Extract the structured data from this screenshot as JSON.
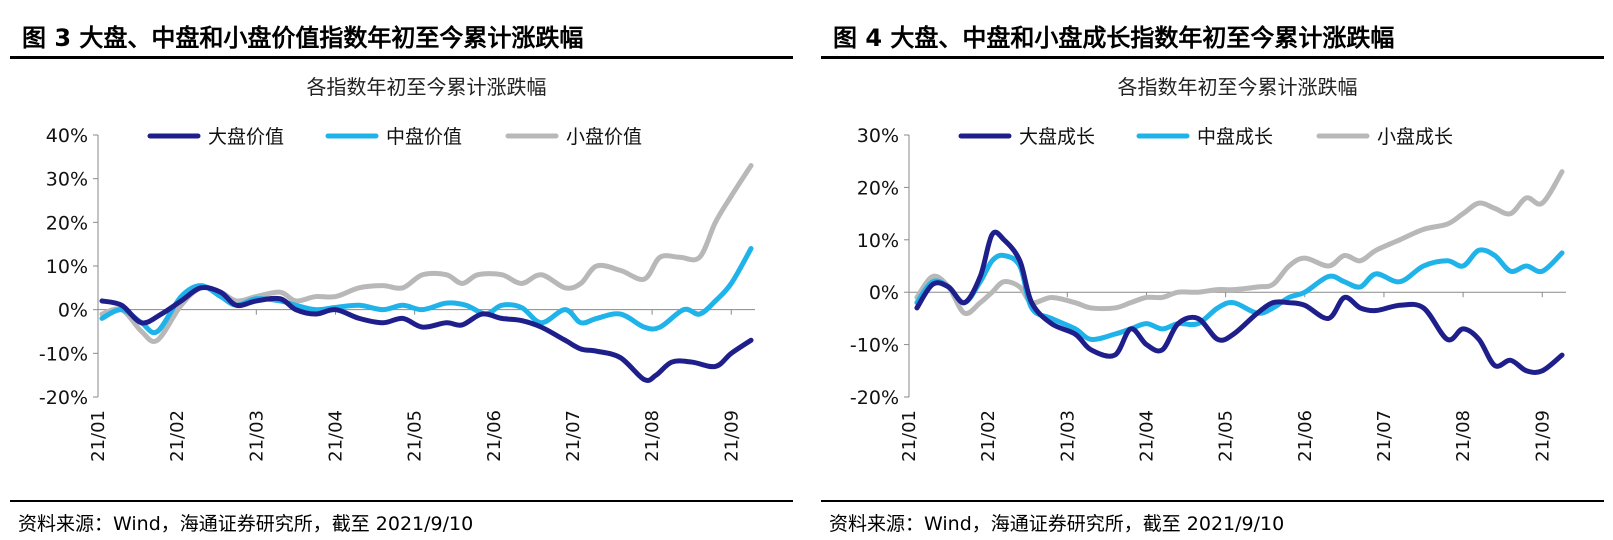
{
  "panels": [
    {
      "fig_title": "图 3  大盘、中盘和小盘价值指数年初至今累计涨跌幅",
      "source": "资料来源：Wind，海通证券研究所，截至 2021/9/10",
      "chart_data": {
        "type": "line",
        "title": "各指数年初至今累计涨跌幅",
        "x_ticks": [
          "21/01",
          "21/02",
          "21/03",
          "21/04",
          "21/05",
          "21/06",
          "21/07",
          "21/08",
          "21/09"
        ],
        "x_range": [
          0,
          8.3
        ],
        "ylim": [
          -20,
          40
        ],
        "y_ticks": [
          -20,
          -10,
          0,
          10,
          20,
          30,
          40
        ],
        "y_tick_labels": [
          "-20%",
          "-10%",
          "0%",
          "10%",
          "20%",
          "30%",
          "40%"
        ],
        "legend_position": "top",
        "grid": false,
        "series": [
          {
            "name": "大盘价值",
            "color": "#1f1f8c",
            "x": [
              0.05,
              0.3,
              0.55,
              0.8,
              1.05,
              1.3,
              1.55,
              1.75,
              2.0,
              2.3,
              2.5,
              2.75,
              3.0,
              3.3,
              3.6,
              3.85,
              4.1,
              4.4,
              4.6,
              4.85,
              5.1,
              5.35,
              5.6,
              5.9,
              6.1,
              6.3,
              6.6,
              6.9,
              7.05,
              7.25,
              7.5,
              7.8,
              8.0,
              8.25
            ],
            "y": [
              2,
              1,
              -3,
              -1,
              2,
              5,
              4,
              1,
              2,
              2.5,
              0,
              -1,
              0,
              -2,
              -3,
              -2,
              -4,
              -3,
              -3.5,
              -1,
              -2,
              -2.5,
              -4,
              -7,
              -9,
              -9.5,
              -11,
              -16,
              -15,
              -12,
              -12,
              -13,
              -10,
              -7
            ]
          },
          {
            "name": "中盘价值",
            "color": "#1fb3ea",
            "x": [
              0.05,
              0.3,
              0.55,
              0.75,
              1.05,
              1.3,
              1.55,
              1.75,
              2.0,
              2.3,
              2.5,
              2.75,
              3.0,
              3.3,
              3.6,
              3.85,
              4.1,
              4.4,
              4.65,
              4.9,
              5.1,
              5.35,
              5.6,
              5.9,
              6.1,
              6.3,
              6.6,
              6.9,
              7.1,
              7.4,
              7.6,
              7.8,
              8.0,
              8.25
            ],
            "y": [
              -2,
              0,
              -3,
              -5,
              3,
              5.5,
              3,
              1,
              2.5,
              2,
              1,
              0,
              0.5,
              1,
              0,
              1,
              0,
              1.5,
              1,
              -1,
              1,
              0.5,
              -3,
              0,
              -3,
              -2,
              -1,
              -4,
              -4,
              0,
              -1,
              2,
              6,
              14
            ]
          },
          {
            "name": "小盘价值",
            "color": "#b8b8b8",
            "x": [
              0.05,
              0.3,
              0.55,
              0.75,
              1.05,
              1.3,
              1.55,
              1.75,
              2.0,
              2.3,
              2.5,
              2.75,
              3.0,
              3.3,
              3.6,
              3.85,
              4.1,
              4.4,
              4.6,
              4.8,
              5.1,
              5.35,
              5.6,
              5.9,
              6.1,
              6.3,
              6.6,
              6.9,
              7.1,
              7.35,
              7.6,
              7.8,
              8.0,
              8.25
            ],
            "y": [
              -1,
              0,
              -5,
              -7,
              1,
              5,
              4,
              2,
              3,
              4,
              2,
              3,
              3,
              5,
              5.5,
              5,
              8,
              8,
              6,
              8,
              8,
              6,
              8,
              5,
              6,
              10,
              9,
              7,
              12,
              12,
              12,
              20,
              26,
              33
            ]
          }
        ]
      }
    },
    {
      "fig_title": "图 4  大盘、中盘和小盘成长指数年初至今累计涨跌幅",
      "source": "资料来源：Wind，海通证券研究所，截至 2021/9/10",
      "chart_data": {
        "type": "line",
        "title": "各指数年初至今累计涨跌幅",
        "x_ticks": [
          "21/01",
          "21/02",
          "21/03",
          "21/04",
          "21/05",
          "21/06",
          "21/07",
          "21/08",
          "21/09"
        ],
        "x_range": [
          0,
          8.3
        ],
        "ylim": [
          -20,
          30
        ],
        "y_ticks": [
          -20,
          -10,
          0,
          10,
          20,
          30
        ],
        "y_tick_labels": [
          "-20%",
          "-10%",
          "0%",
          "10%",
          "20%",
          "30%"
        ],
        "legend_position": "top",
        "grid": false,
        "series": [
          {
            "name": "大盘成长",
            "color": "#1f1f8c",
            "x": [
              0.1,
              0.3,
              0.5,
              0.7,
              0.9,
              1.05,
              1.2,
              1.4,
              1.55,
              1.8,
              2.1,
              2.3,
              2.6,
              2.8,
              3.0,
              3.2,
              3.4,
              3.65,
              3.9,
              4.1,
              4.4,
              4.6,
              4.8,
              5.0,
              5.3,
              5.5,
              5.7,
              5.9,
              6.2,
              6.5,
              6.8,
              7.0,
              7.2,
              7.4,
              7.6,
              7.8,
              8.0,
              8.25
            ],
            "y": [
              -3,
              1.5,
              1,
              -2,
              3,
              11,
              10,
              6,
              -2,
              -6,
              -8,
              -11,
              -12,
              -7,
              -10,
              -11,
              -6,
              -5,
              -9,
              -8,
              -4,
              -2,
              -2,
              -2.5,
              -5,
              -1,
              -3,
              -3.5,
              -2.5,
              -3,
              -9,
              -7,
              -9,
              -14,
              -13,
              -15,
              -15,
              -12
            ]
          },
          {
            "name": "中盘成长",
            "color": "#1fb3ea",
            "x": [
              0.1,
              0.3,
              0.5,
              0.7,
              0.9,
              1.05,
              1.2,
              1.4,
              1.55,
              1.8,
              2.1,
              2.3,
              2.6,
              2.8,
              3.0,
              3.2,
              3.4,
              3.65,
              3.9,
              4.1,
              4.4,
              4.6,
              4.8,
              5.0,
              5.3,
              5.5,
              5.7,
              5.9,
              6.2,
              6.5,
              6.8,
              7.0,
              7.2,
              7.4,
              7.6,
              7.8,
              8.0,
              8.25
            ],
            "y": [
              -2,
              2,
              1,
              -2,
              2,
              6,
              7,
              5,
              -3,
              -5,
              -7,
              -9,
              -8,
              -7,
              -6,
              -7,
              -6,
              -6,
              -3,
              -2,
              -4,
              -3,
              -1,
              0,
              3,
              2,
              1,
              3.5,
              2,
              5,
              6,
              5,
              8,
              7,
              4,
              5,
              4,
              7.5
            ]
          },
          {
            "name": "小盘成长",
            "color": "#b8b8b8",
            "x": [
              0.1,
              0.3,
              0.5,
              0.7,
              0.9,
              1.05,
              1.2,
              1.4,
              1.55,
              1.8,
              2.1,
              2.3,
              2.6,
              2.8,
              3.0,
              3.2,
              3.4,
              3.65,
              3.9,
              4.1,
              4.4,
              4.6,
              4.8,
              5.0,
              5.3,
              5.5,
              5.7,
              5.9,
              6.2,
              6.5,
              6.8,
              7.0,
              7.2,
              7.4,
              7.6,
              7.8,
              8.0,
              8.25
            ],
            "y": [
              -1,
              3,
              1,
              -4,
              -2,
              0,
              2,
              1,
              -2,
              -1,
              -2,
              -3,
              -3,
              -2,
              -1,
              -1,
              0,
              0,
              0.5,
              0.5,
              1,
              1.5,
              5,
              6.5,
              5,
              7,
              6,
              8,
              10,
              12,
              13,
              15,
              17,
              16,
              15,
              18,
              17,
              23
            ]
          }
        ]
      }
    }
  ]
}
